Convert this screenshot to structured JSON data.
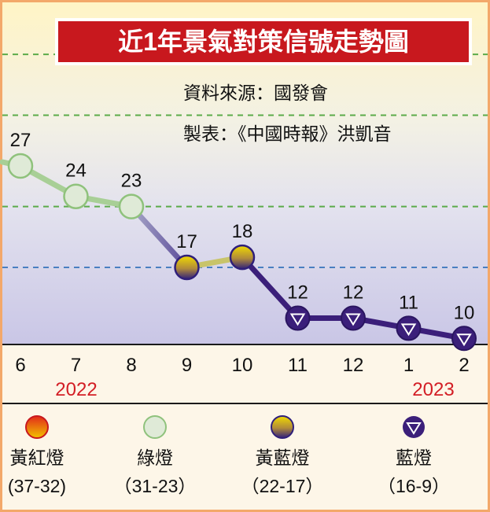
{
  "chart_data": {
    "type": "line",
    "title": "近1年景氣對策信號走勢圖",
    "source": "資料來源：國發會",
    "credit": "製表：《中國時報》洪凱音",
    "x": [
      "6",
      "7",
      "8",
      "9",
      "10",
      "11",
      "12",
      "1",
      "2"
    ],
    "years": [
      {
        "label": "2022"
      },
      {
        "label": "2023"
      }
    ],
    "series": [
      {
        "values": [
          27,
          24,
          23,
          17,
          18,
          12,
          12,
          11,
          10
        ],
        "signals": [
          "green",
          "green",
          "green",
          "yellow-blue",
          "yellow-blue",
          "blue",
          "blue",
          "blue",
          "blue"
        ],
        "labels": [
          "27",
          "24",
          "23",
          "17",
          "18",
          "12",
          "12",
          "11",
          "10"
        ]
      }
    ],
    "ylim": [
      5,
      50
    ],
    "threshold_lines": [
      38,
      32,
      23,
      17
    ],
    "legend": [
      {
        "name": "黃紅燈",
        "range": "(37-32)",
        "color": "#e8a800"
      },
      {
        "name": "綠燈",
        "range": "（31-23）",
        "color": "#9ec98f"
      },
      {
        "name": "黃藍燈",
        "range": "（22-17）",
        "color": "#e0c400"
      },
      {
        "name": "藍燈",
        "range": "（16-9）",
        "color": "#3b1f7a"
      }
    ],
    "colors": {
      "green_line": "#a8cf96",
      "blue_line": "#3b1f7a",
      "title_bg": "#c8181e",
      "band_top": "#fff6c8",
      "band_green": "#eaf0e4",
      "band_blue": "#d5d3ea"
    }
  }
}
